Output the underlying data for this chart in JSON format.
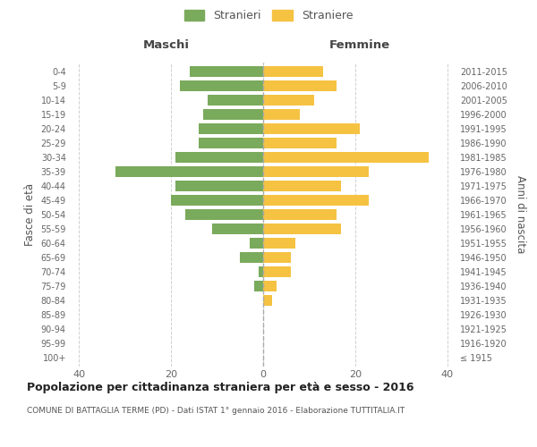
{
  "age_groups": [
    "100+",
    "95-99",
    "90-94",
    "85-89",
    "80-84",
    "75-79",
    "70-74",
    "65-69",
    "60-64",
    "55-59",
    "50-54",
    "45-49",
    "40-44",
    "35-39",
    "30-34",
    "25-29",
    "20-24",
    "15-19",
    "10-14",
    "5-9",
    "0-4"
  ],
  "birth_years": [
    "≤ 1915",
    "1916-1920",
    "1921-1925",
    "1926-1930",
    "1931-1935",
    "1936-1940",
    "1941-1945",
    "1946-1950",
    "1951-1955",
    "1956-1960",
    "1961-1965",
    "1966-1970",
    "1971-1975",
    "1976-1980",
    "1981-1985",
    "1986-1990",
    "1991-1995",
    "1996-2000",
    "2001-2005",
    "2006-2010",
    "2011-2015"
  ],
  "maschi": [
    0,
    0,
    0,
    0,
    0,
    2,
    1,
    5,
    3,
    11,
    17,
    20,
    19,
    32,
    19,
    14,
    14,
    13,
    12,
    18,
    16
  ],
  "femmine": [
    0,
    0,
    0,
    0,
    2,
    3,
    6,
    6,
    7,
    17,
    16,
    23,
    17,
    23,
    36,
    16,
    21,
    8,
    11,
    16,
    13
  ],
  "color_maschi": "#7aaa5c",
  "color_femmine": "#f5c242",
  "title": "Popolazione per cittadinanza straniera per età e sesso - 2016",
  "subtitle": "COMUNE DI BATTAGLIA TERME (PD) - Dati ISTAT 1° gennaio 2016 - Elaborazione TUTTITALIA.IT",
  "xlabel_maschi": "Maschi",
  "xlabel_femmine": "Femmine",
  "ylabel_left": "Fasce di età",
  "ylabel_right": "Anni di nascita",
  "legend_maschi": "Stranieri",
  "legend_femmine": "Straniere",
  "xlim": 42,
  "background_color": "#ffffff",
  "grid_color": "#d0d0d0",
  "bar_height": 0.75,
  "dashed_line_color": "#aaaaaa"
}
